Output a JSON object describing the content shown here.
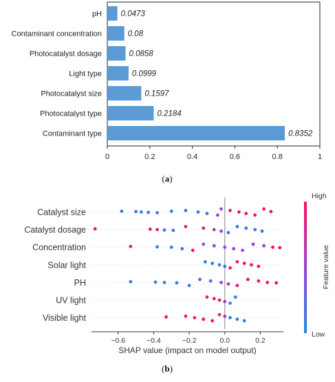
{
  "chart_data": [
    {
      "type": "bar",
      "orientation": "horizontal",
      "categories": [
        "pH",
        "Contaminant concentration",
        "Photocatalyst dosage",
        "Light type",
        "Photocatalyst size",
        "Photocatalyst type",
        "Contaminant type"
      ],
      "values": [
        0.0473,
        0.08,
        0.0858,
        0.0999,
        0.1597,
        0.2184,
        0.8352
      ],
      "value_labels": [
        "0.0473",
        "0.08",
        "0.0858",
        "0.0999",
        "0.1597",
        "0.2184",
        "0.8352"
      ],
      "xlim": [
        0,
        1
      ],
      "xticks": [
        0,
        0.2,
        0.4,
        0.6,
        0.8,
        1
      ],
      "xtick_labels": [
        "0",
        "0.2",
        "0.4",
        "0.6",
        "0.8",
        "1"
      ],
      "bar_color": "#5b9bd5",
      "grid": false
    },
    {
      "type": "scatter",
      "subtype": "shap-beeswarm",
      "features": [
        "Catalyst size",
        "Catalyst dosage",
        "Concentration",
        "Solar light",
        "PH",
        "UV light",
        "Visible light"
      ],
      "xlabel": "SHAP value (impact on model output)",
      "xlim": [
        -0.75,
        0.33
      ],
      "xticks": [
        -0.6,
        -0.4,
        -0.2,
        0.0,
        0.2
      ],
      "xtick_labels": [
        "−0.6",
        "−0.4",
        "−0.2",
        "0.0",
        "0.2"
      ],
      "colorbar": {
        "label": "Feature value",
        "high": "High",
        "low": "Low",
        "low_color": "#1e88e5",
        "high_color": "#ff0d57"
      },
      "series": [
        {
          "feature": "Catalyst size",
          "points": [
            {
              "x": -0.58,
              "v": 0.05
            },
            {
              "x": -0.5,
              "v": 0.1
            },
            {
              "x": -0.47,
              "v": 0.05
            },
            {
              "x": -0.43,
              "v": 0.1
            },
            {
              "x": -0.38,
              "v": 0.15
            },
            {
              "x": -0.3,
              "v": 0.1
            },
            {
              "x": -0.22,
              "v": 0.12
            },
            {
              "x": -0.15,
              "v": 0.1
            },
            {
              "x": -0.1,
              "v": 0.12
            },
            {
              "x": -0.04,
              "v": 0.5
            },
            {
              "x": -0.02,
              "v": 0.45
            },
            {
              "x": 0.03,
              "v": 0.95
            },
            {
              "x": 0.08,
              "v": 0.95
            },
            {
              "x": 0.12,
              "v": 0.95
            },
            {
              "x": 0.17,
              "v": 0.95
            },
            {
              "x": 0.22,
              "v": 0.95
            },
            {
              "x": 0.26,
              "v": 0.95
            }
          ]
        },
        {
          "feature": "Catalyst dosage",
          "points": [
            {
              "x": -0.73,
              "v": 0.95
            },
            {
              "x": -0.42,
              "v": 0.95
            },
            {
              "x": -0.38,
              "v": 0.9
            },
            {
              "x": -0.34,
              "v": 0.1
            },
            {
              "x": -0.29,
              "v": 0.15
            },
            {
              "x": -0.22,
              "v": 0.9
            },
            {
              "x": -0.12,
              "v": 0.85
            },
            {
              "x": -0.06,
              "v": 0.6
            },
            {
              "x": -0.02,
              "v": 0.5
            },
            {
              "x": 0.02,
              "v": 0.1
            },
            {
              "x": 0.07,
              "v": 0.08
            },
            {
              "x": 0.12,
              "v": 0.1
            },
            {
              "x": 0.17,
              "v": 0.12
            },
            {
              "x": 0.21,
              "v": 0.1
            }
          ]
        },
        {
          "feature": "Concentration",
          "points": [
            {
              "x": -0.53,
              "v": 0.95
            },
            {
              "x": -0.38,
              "v": 0.1
            },
            {
              "x": -0.3,
              "v": 0.1
            },
            {
              "x": -0.24,
              "v": 0.12
            },
            {
              "x": -0.18,
              "v": 0.95
            },
            {
              "x": -0.12,
              "v": 0.4
            },
            {
              "x": -0.06,
              "v": 0.5
            },
            {
              "x": 0.0,
              "v": 0.5
            },
            {
              "x": 0.05,
              "v": 0.45
            },
            {
              "x": 0.1,
              "v": 0.5
            },
            {
              "x": 0.16,
              "v": 0.55
            },
            {
              "x": 0.22,
              "v": 0.5
            },
            {
              "x": 0.27,
              "v": 0.95
            },
            {
              "x": 0.31,
              "v": 0.95
            }
          ]
        },
        {
          "feature": "Solar light",
          "points": [
            {
              "x": -0.11,
              "v": 0.05
            },
            {
              "x": -0.07,
              "v": 0.05
            },
            {
              "x": -0.03,
              "v": 0.05
            },
            {
              "x": 0.0,
              "v": 0.1
            },
            {
              "x": 0.03,
              "v": 0.95
            },
            {
              "x": 0.07,
              "v": 0.95
            },
            {
              "x": 0.11,
              "v": 0.95
            },
            {
              "x": 0.15,
              "v": 0.95
            },
            {
              "x": 0.19,
              "v": 0.95
            }
          ]
        },
        {
          "feature": "PH",
          "points": [
            {
              "x": -0.53,
              "v": 0.05
            },
            {
              "x": -0.39,
              "v": 0.1
            },
            {
              "x": -0.34,
              "v": 0.1
            },
            {
              "x": -0.27,
              "v": 0.12
            },
            {
              "x": -0.2,
              "v": 0.1
            },
            {
              "x": -0.14,
              "v": 0.15
            },
            {
              "x": -0.08,
              "v": 0.2
            },
            {
              "x": -0.02,
              "v": 0.45
            },
            {
              "x": 0.02,
              "v": 0.6
            },
            {
              "x": 0.07,
              "v": 0.9
            },
            {
              "x": 0.13,
              "v": 0.95
            },
            {
              "x": 0.19,
              "v": 0.95
            },
            {
              "x": 0.24,
              "v": 0.95
            },
            {
              "x": 0.29,
              "v": 0.95
            }
          ]
        },
        {
          "feature": "UV light",
          "points": [
            {
              "x": -0.1,
              "v": 0.95
            },
            {
              "x": -0.06,
              "v": 0.95
            },
            {
              "x": -0.03,
              "v": 0.9
            },
            {
              "x": 0.0,
              "v": 0.5
            },
            {
              "x": 0.03,
              "v": 0.05
            },
            {
              "x": 0.06,
              "v": 0.05
            }
          ]
        },
        {
          "feature": "Visible light",
          "points": [
            {
              "x": -0.33,
              "v": 0.95
            },
            {
              "x": -0.22,
              "v": 0.95
            },
            {
              "x": -0.17,
              "v": 0.95
            },
            {
              "x": -0.12,
              "v": 0.95
            },
            {
              "x": -0.07,
              "v": 0.95
            },
            {
              "x": -0.03,
              "v": 0.9
            },
            {
              "x": 0.0,
              "v": 0.5
            },
            {
              "x": 0.03,
              "v": 0.05
            },
            {
              "x": 0.07,
              "v": 0.05
            },
            {
              "x": 0.11,
              "v": 0.05
            }
          ]
        }
      ]
    }
  ],
  "captions": {
    "a": "a",
    "b": "b"
  }
}
